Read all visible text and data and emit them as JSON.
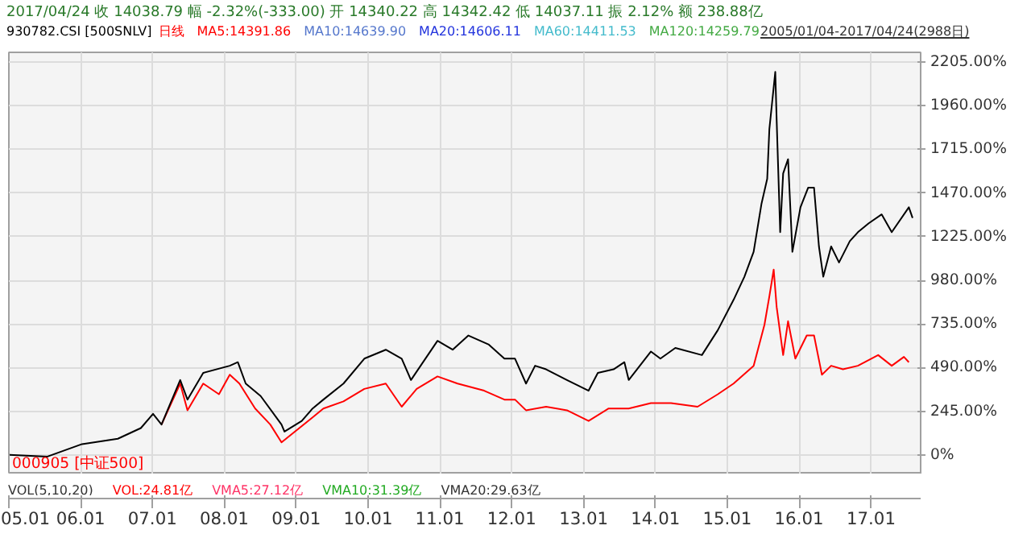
{
  "chart_data": {
    "type": "line",
    "title": "2017/04/24 收 14038.79 幅 -2.32%(-333.00) 开 14340.22 高 14342.42 低 14037.11 振 2.12% 额 238.88亿",
    "subtitle": "2005/01/04-2017/04/24(2988日)",
    "annotations": [
      "日线",
      "MA5:14391.86",
      "MA10:14639.90",
      "MA20:14606.11",
      "MA60:14411.53",
      "MA120:14259.79",
      "VOL(5,10,20)",
      "VOL:24.81亿",
      "VMA5:27.12亿",
      "VMA10:31.39亿",
      "VMA20:29.63亿"
    ],
    "series": [
      {
        "name": "930782.CSI [500SNLV]",
        "color": "#000000",
        "x": [
          "2005-01-04",
          "2005-07-16",
          "2006-01-08",
          "2006-07-09",
          "2006-11-03",
          "2007-01-04",
          "2007-02-16",
          "2007-05-22",
          "2007-06-28",
          "2007-09-16",
          "2008-01-29",
          "2008-03-10",
          "2008-04-19",
          "2008-07-04",
          "2008-10-18",
          "2008-11-02",
          "2009-01-29",
          "2009-03-25",
          "2009-05-19",
          "2009-08-29",
          "2009-12-13",
          "2010-04-01",
          "2010-06-21",
          "2010-08-07",
          "2010-12-20",
          "2011-03-07",
          "2011-05-26",
          "2011-09-05",
          "2011-11-25",
          "2012-01-18",
          "2012-03-14",
          "2012-04-29",
          "2012-06-24",
          "2012-10-08",
          "2013-01-26",
          "2013-03-14",
          "2013-06-02",
          "2013-07-27",
          "2013-08-18",
          "2013-12-09",
          "2014-01-26",
          "2014-04-12",
          "2014-08-25",
          "2014-11-14",
          "2015-02-02",
          "2015-03-29",
          "2015-05-15",
          "2015-06-24",
          "2015-07-23",
          "2015-08-03",
          "2015-09-02",
          "2015-09-09",
          "2015-09-27",
          "2015-10-12",
          "2015-11-06",
          "2015-11-28",
          "2016-01-08",
          "2016-02-16",
          "2016-03-17",
          "2016-04-11",
          "2016-05-03",
          "2016-06-12",
          "2016-07-22",
          "2016-09-15",
          "2016-10-26",
          "2016-12-20",
          "2017-02-24",
          "2017-04-16",
          "2017-07-12",
          "2017-07-31"
        ],
        "values": [
          0,
          -10,
          60,
          90,
          150,
          230,
          170,
          420,
          310,
          460,
          500,
          520,
          400,
          330,
          170,
          130,
          190,
          260,
          310,
          400,
          540,
          590,
          540,
          420,
          640,
          590,
          670,
          620,
          540,
          540,
          400,
          500,
          480,
          420,
          360,
          460,
          480,
          520,
          420,
          580,
          540,
          600,
          560,
          700,
          870,
          1000,
          1140,
          1410,
          1550,
          1830,
          2150,
          1880,
          1250,
          1580,
          1660,
          1140,
          1390,
          1500,
          1500,
          1170,
          1000,
          1170,
          1080,
          1200,
          1250,
          1300,
          1350,
          1250,
          1390,
          1330
        ]
      },
      {
        "name": "000905 [中证500]",
        "color": "#ff0000",
        "x": [
          "2007-02-16",
          "2007-05-22",
          "2007-06-28",
          "2007-09-16",
          "2007-12-05",
          "2008-01-29",
          "2008-03-18",
          "2008-06-06",
          "2008-08-22",
          "2008-10-18",
          "2009-03-25",
          "2009-05-19",
          "2009-08-29",
          "2009-12-13",
          "2010-04-01",
          "2010-06-21",
          "2010-09-05",
          "2010-12-20",
          "2011-04-01",
          "2011-08-14",
          "2011-11-25",
          "2012-01-18",
          "2012-03-14",
          "2012-06-24",
          "2012-10-08",
          "2013-01-26",
          "2013-05-08",
          "2013-08-18",
          "2013-12-09",
          "2014-03-21",
          "2014-08-03",
          "2014-11-14",
          "2015-02-02",
          "2015-05-15",
          "2015-07-09",
          "2015-08-03",
          "2015-08-25",
          "2015-09-09",
          "2015-10-12",
          "2015-11-06",
          "2015-12-13",
          "2016-02-09",
          "2016-03-17",
          "2016-04-26",
          "2016-06-12",
          "2016-08-11",
          "2016-10-26",
          "2017-02-06",
          "2017-04-16",
          "2017-06-17",
          "2017-07-12"
        ],
        "values": [
          170,
          400,
          250,
          400,
          340,
          450,
          400,
          260,
          170,
          70,
          210,
          260,
          300,
          370,
          400,
          270,
          370,
          440,
          400,
          360,
          310,
          310,
          250,
          270,
          250,
          190,
          260,
          260,
          290,
          290,
          270,
          340,
          400,
          500,
          730,
          890,
          1040,
          830,
          560,
          750,
          540,
          670,
          670,
          450,
          500,
          480,
          500,
          560,
          500,
          550,
          520
        ]
      }
    ],
    "xlim": [
      "2005-01-01",
      "2017-09-10"
    ],
    "xticks": [
      {
        "value": "2005-01-01",
        "label": "05.01"
      },
      {
        "value": "2006-01-01",
        "label": "06.01"
      },
      {
        "value": "2007-01-01",
        "label": "07.01"
      },
      {
        "value": "2008-01-01",
        "label": "08.01"
      },
      {
        "value": "2009-01-01",
        "label": "09.01"
      },
      {
        "value": "2010-01-01",
        "label": "10.01"
      },
      {
        "value": "2011-01-01",
        "label": "11.01"
      },
      {
        "value": "2012-01-01",
        "label": "12.01"
      },
      {
        "value": "2013-01-01",
        "label": "13.01"
      },
      {
        "value": "2014-01-01",
        "label": "14.01"
      },
      {
        "value": "2015-01-01",
        "label": "15.01"
      },
      {
        "value": "2016-01-01",
        "label": "16.01"
      },
      {
        "value": "2017-01-01",
        "label": "17.01"
      }
    ],
    "ylim": [
      -110,
      2260
    ],
    "yticks": [
      {
        "value": 0,
        "label": "0%"
      },
      {
        "value": 245,
        "label": "245.00%"
      },
      {
        "value": 490,
        "label": "490.00%"
      },
      {
        "value": 735,
        "label": "735.00%"
      },
      {
        "value": 980,
        "label": "980.00%"
      },
      {
        "value": 1225,
        "label": "1225.00%"
      },
      {
        "value": 1470,
        "label": "1470.00%"
      },
      {
        "value": 1715,
        "label": "1715.00%"
      },
      {
        "value": 1960,
        "label": "1960.00%"
      },
      {
        "value": 2205,
        "label": "2205.00%"
      }
    ],
    "grid": true,
    "line_style": "solid"
  }
}
